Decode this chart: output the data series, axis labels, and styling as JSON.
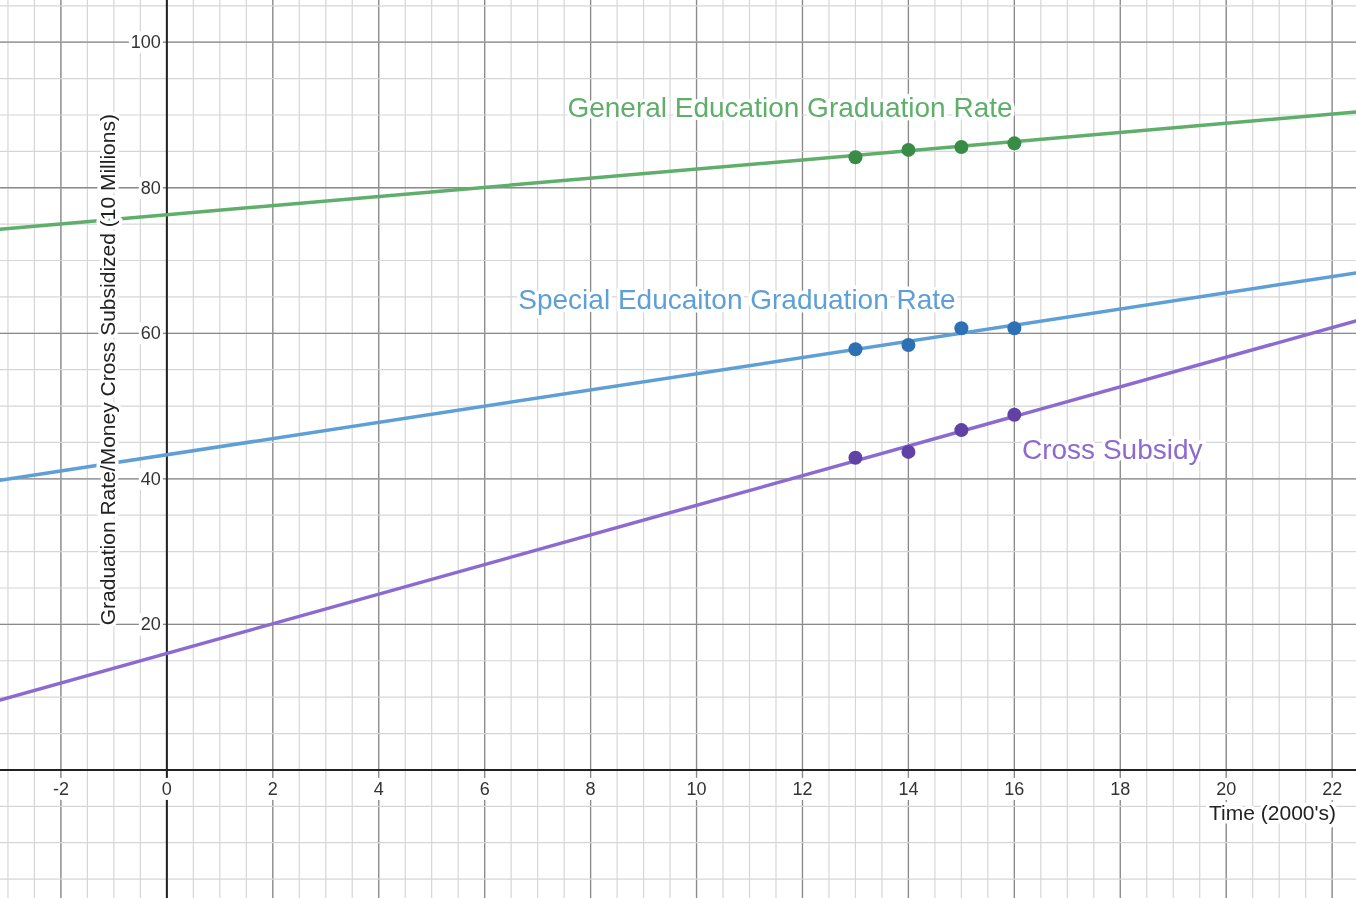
{
  "chart_data": {
    "type": "scatter",
    "xlabel": "Time (2000's)",
    "ylabel": "Graduation Rate/Money Cross Subsidized (10 Millions)",
    "xlim": [
      -3.15,
      22.45
    ],
    "ylim": [
      -17.6,
      105.8
    ],
    "xticks": [
      -2,
      0,
      2,
      4,
      6,
      8,
      10,
      12,
      14,
      16,
      18,
      20,
      22
    ],
    "yticks": [
      20,
      40,
      60,
      80,
      100
    ],
    "grid": true,
    "series": [
      {
        "color": "#388c46",
        "marker": "circle",
        "x": [
          13,
          14,
          15,
          16
        ],
        "values": [
          84.2,
          85.2,
          85.6,
          86.1
        ]
      },
      {
        "color": "#2d70b3",
        "marker": "circle",
        "x": [
          13,
          14,
          15,
          16
        ],
        "values": [
          57.8,
          58.4,
          60.7,
          60.7
        ]
      },
      {
        "color": "#6042a6",
        "marker": "circle",
        "x": [
          13,
          14,
          15,
          16
        ],
        "values": [
          42.9,
          43.7,
          46.7,
          48.8
        ]
      },
      {
        "type": "line",
        "name": "General Education Graduation Rate",
        "color": "#5fae6b",
        "x": [
          -3.15,
          22.45
        ],
        "values": [
          74.3,
          90.4
        ]
      },
      {
        "type": "line",
        "name": "Special Educaiton Graduation Rate",
        "color": "#5e9fd6",
        "x": [
          -3.15,
          22.45
        ],
        "values": [
          39.8,
          68.3
        ]
      },
      {
        "type": "line",
        "name": "Cross Subsidy",
        "color": "#8c6bd1",
        "x": [
          -3.15,
          22.45
        ],
        "values": [
          9.6,
          61.7
        ]
      }
    ]
  }
}
